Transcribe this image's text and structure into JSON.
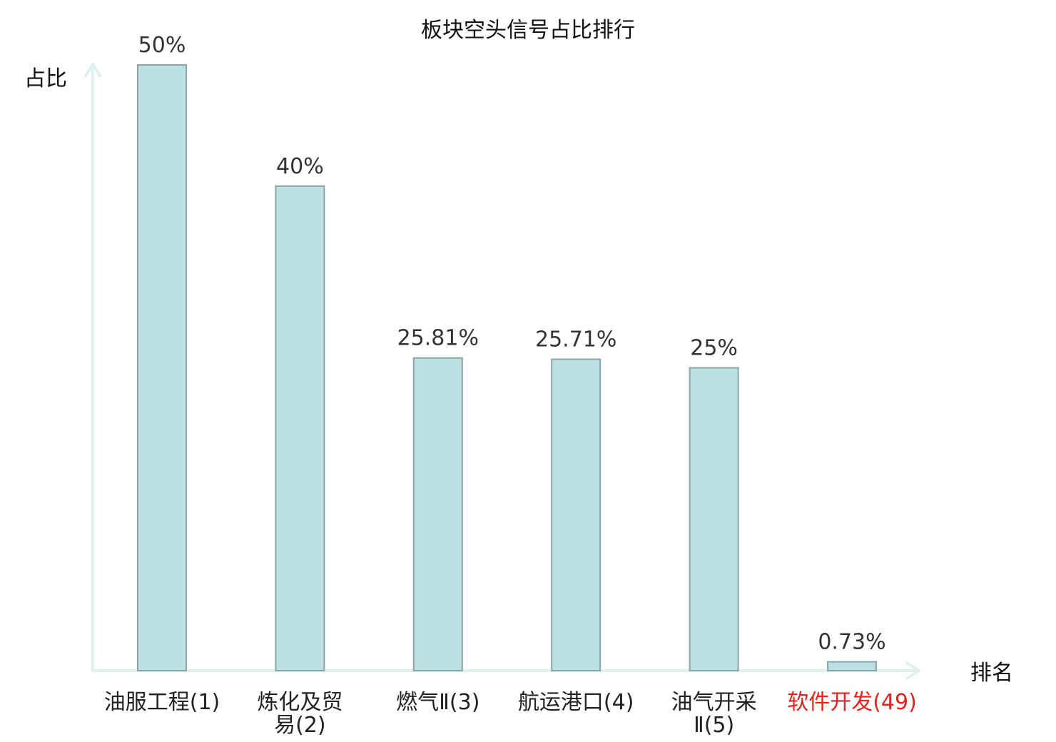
{
  "chart_data": {
    "type": "bar",
    "title": "板块空头信号占比排行",
    "ylabel": "占比",
    "xlabel": "排名",
    "ylim": [
      0,
      50
    ],
    "grid": false,
    "legend": "none",
    "categories": [
      [
        "油服工程(1)"
      ],
      [
        "炼化及贸",
        "易(2)"
      ],
      [
        "燃气Ⅱ(3)"
      ],
      [
        "航运港口(4)"
      ],
      [
        "油气开采",
        "Ⅱ(5)"
      ],
      [
        "软件开发(49)"
      ]
    ],
    "values": [
      50,
      40,
      25.81,
      25.71,
      25,
      0.73
    ],
    "value_labels": [
      "50%",
      "40%",
      "25.81%",
      "25.71%",
      "25%",
      "0.73%"
    ],
    "highlight_index": 5,
    "colors": {
      "bar_fill": "#bde0e3",
      "bar_stroke": "#8aa4a8",
      "axis": "#dff0ef",
      "highlight_text": "#e8211f",
      "text": "#222222"
    }
  }
}
